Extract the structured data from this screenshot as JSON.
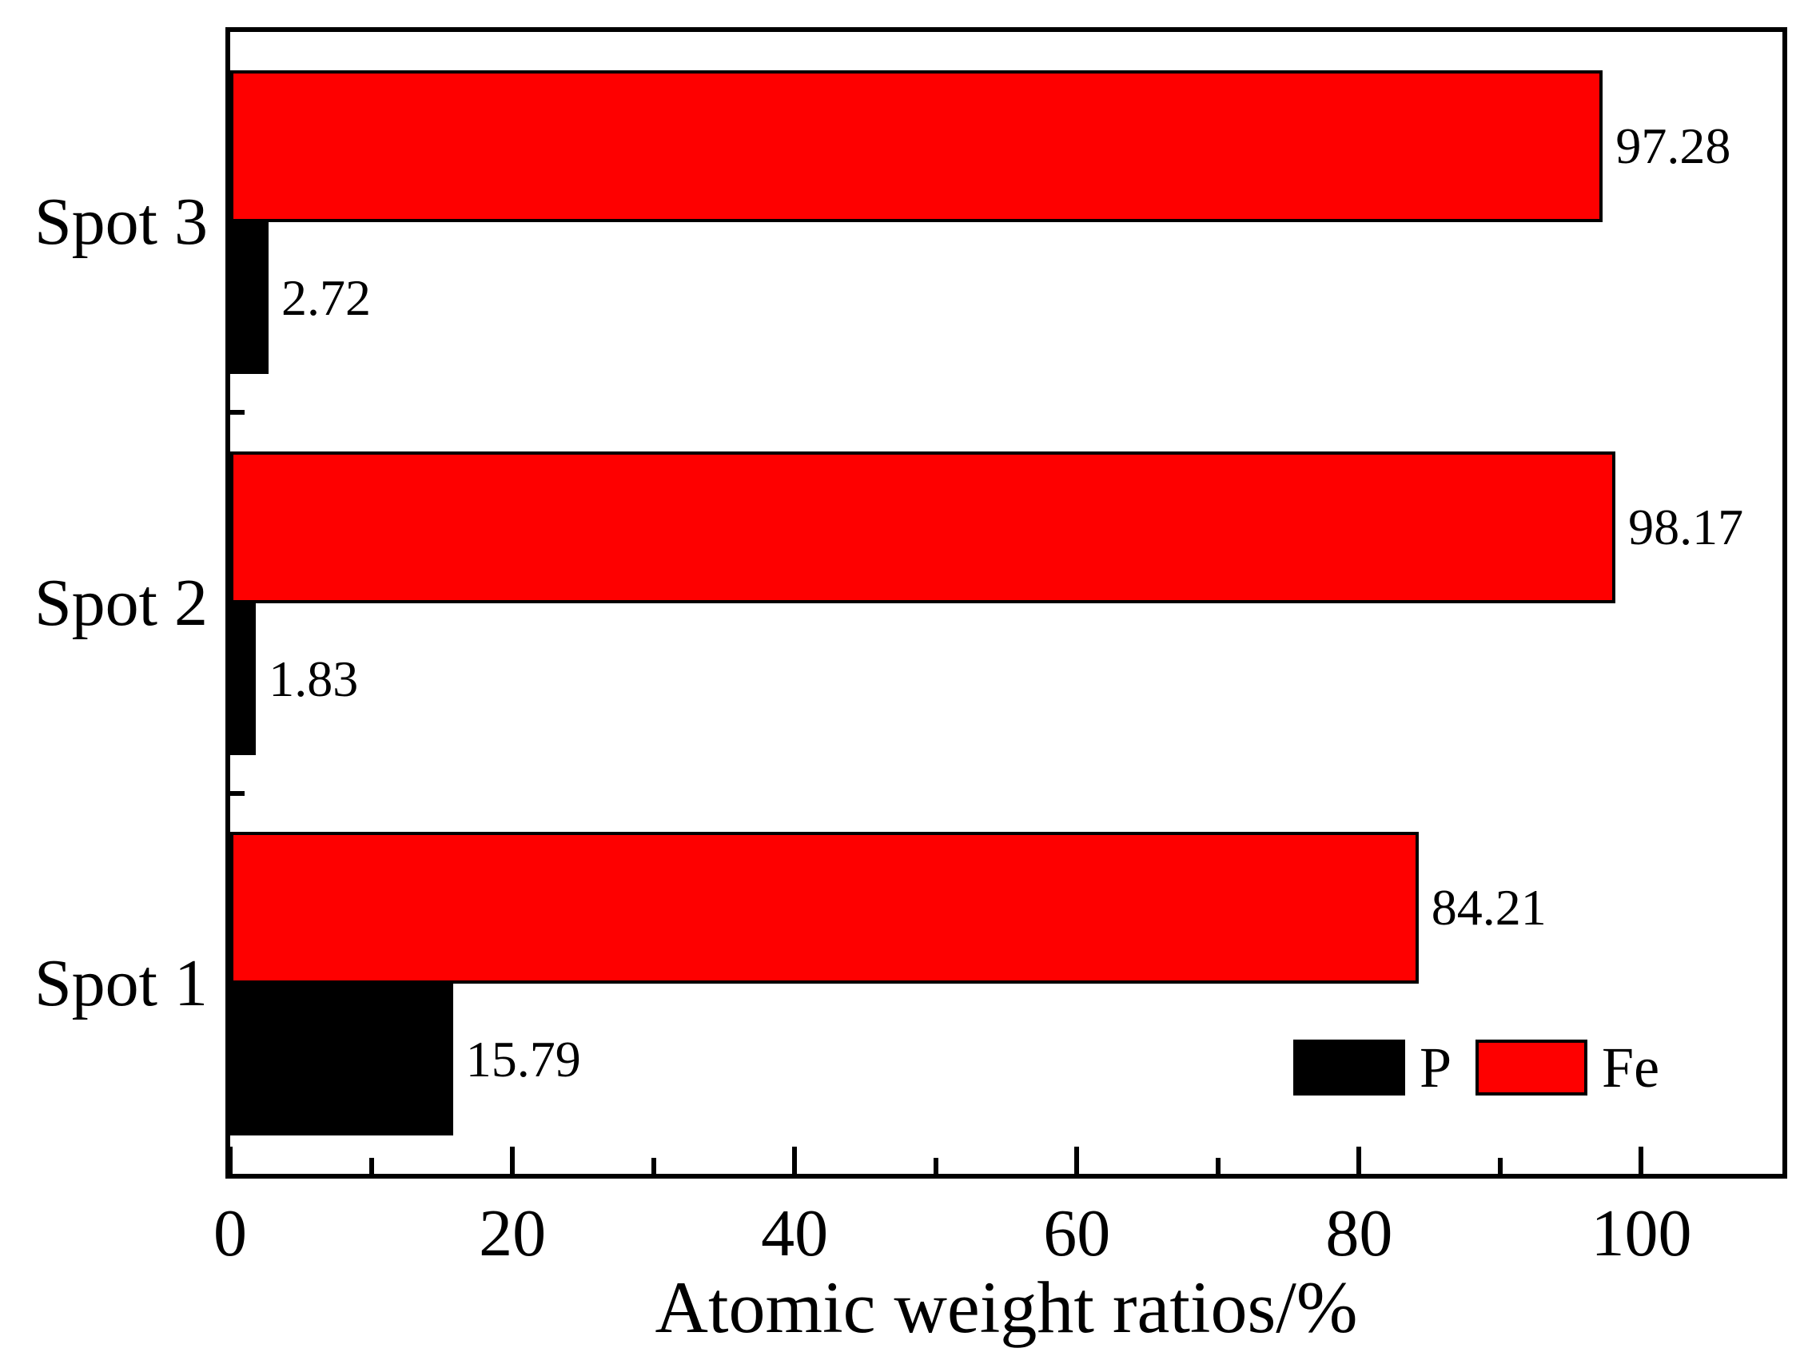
{
  "figure": {
    "background_color": "#ffffff",
    "axis_color": "#000000",
    "text_color": "#000000"
  },
  "chart_data": {
    "type": "bar",
    "orientation": "horizontal",
    "title": "",
    "xlabel": "Atomic weight ratios/%",
    "ylabel": "",
    "xlim": [
      0,
      110
    ],
    "x_major_ticks": [
      0,
      20,
      40,
      60,
      80,
      100
    ],
    "x_major_tick_labels": [
      "0",
      "20",
      "40",
      "60",
      "80",
      "100"
    ],
    "x_minor_ticks": [
      10,
      30,
      50,
      70,
      90
    ],
    "grid": false,
    "categories": [
      "Spot 1",
      "Spot 2",
      "Spot 3"
    ],
    "series": [
      {
        "name": "P",
        "color": "#000000",
        "bar_side": "below-center",
        "values": [
          15.79,
          1.83,
          2.72
        ],
        "labels": [
          "15.79",
          "1.83",
          "2.72"
        ]
      },
      {
        "name": "Fe",
        "color": "#fe0000",
        "bar_side": "above-center",
        "values": [
          84.21,
          98.17,
          97.28
        ],
        "labels": [
          "84.21",
          "98.17",
          "97.28"
        ]
      }
    ],
    "bar_outline_color": "#000000",
    "value_labels_shown": true,
    "legend": {
      "position": "bottom-right",
      "items": [
        {
          "label": "P",
          "color": "#000000"
        },
        {
          "label": "Fe",
          "color": "#fe0000"
        }
      ]
    }
  }
}
